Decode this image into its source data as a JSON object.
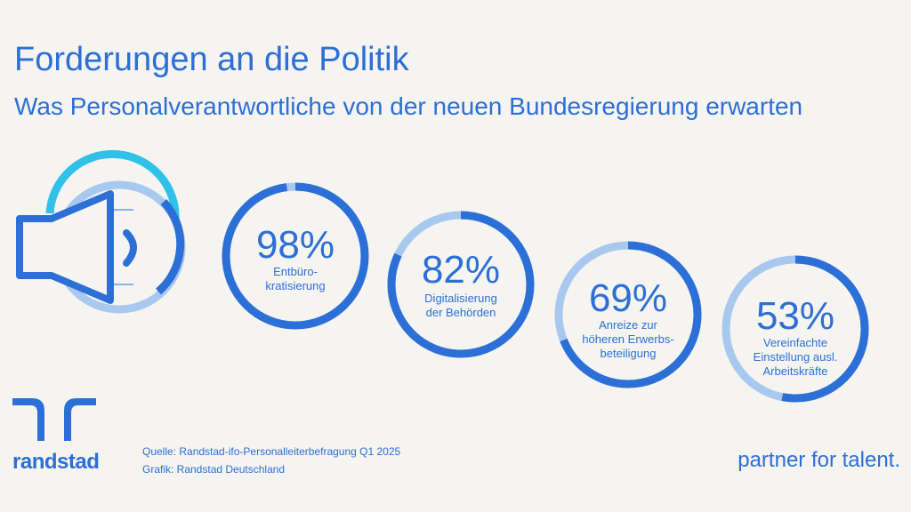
{
  "chart_data": {
    "type": "pie",
    "title": "Forderungen an die Politik",
    "subtitle": "Was Personalverantwortliche von der neuen Bundesregierung erwarten",
    "unit": "%",
    "items": [
      {
        "value": 98,
        "value_label": "98%",
        "label": "Entbüro-\nkratisierung"
      },
      {
        "value": 82,
        "value_label": "82%",
        "label": "Digitalisierung\nder Behörden"
      },
      {
        "value": 69,
        "value_label": "69%",
        "label": "Anreize zur\nhöheren Erwerbs-\nbeteiligung"
      },
      {
        "value": 53,
        "value_label": "53%",
        "label": "Vereinfachte\nEinstellung ausl.\nArbeitskräfte"
      }
    ]
  },
  "footer": {
    "logo": "randstad",
    "source_line1": "Quelle: Randstad-ifo-Personalleiterbefragung Q1 2025",
    "source_line2": "Grafik: Randstad Deutschland",
    "tagline": "partner for talent."
  },
  "colors": {
    "primary": "#2c6fd6",
    "track": "#a9c8ef",
    "accent": "#2fc1e8",
    "background": "#f5f4f0"
  },
  "icons": {
    "speaker": "speaker-icon",
    "logo": "randstad-logo-icon"
  }
}
